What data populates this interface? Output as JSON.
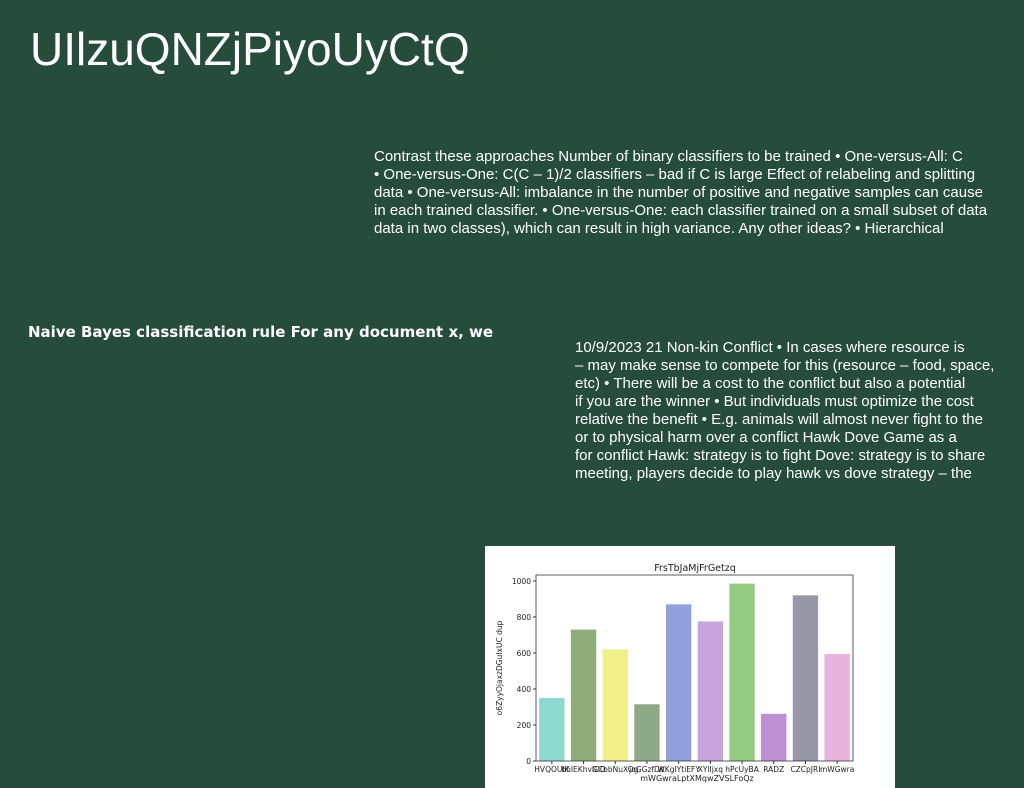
{
  "header": {
    "title": "UIlzuQNZjPiyoUyCtQ"
  },
  "blocks": [
    {
      "lines": [
        "Contrast these approaches Number of binary classifiers to be trained • One-versus-All: C",
        "• One-versus-One: C(C – 1)/2 classifiers – bad if C is large Effect of relabeling and splitting",
        "data • One-versus-All: imbalance in the number of positive and negative samples can cause",
        "in each trained classifier. • One-versus-One: each classifier trained on a small subset of data",
        "data in two classes), which can result in high variance. Any other ideas? • Hierarchical"
      ]
    },
    {
      "lines": [
        "Naive Bayes classification rule For any document x, we"
      ]
    },
    {
      "lines": [
        "10/9/2023 21 Non-kin Conflict • In cases where resource is",
        "– may make sense to compete for this (resource – food, space,",
        "etc) • There will be a cost to the conflict but also a potential",
        "if you are the winner • But individuals must optimize the cost",
        "relative the benefit • E.g. animals will almost never fight to the",
        "or to physical harm over a conflict Hawk Dove Game as a",
        "for conflict Hawk: strategy is to fight Dove: strategy is to share",
        "meeting, players decide to play hawk vs dove strategy – the"
      ]
    }
  ],
  "chart_data": {
    "type": "bar",
    "title": "FrsTbJaMjFrGetzq",
    "x_label": "mWGwraLptXMqwZVSLFoQz",
    "y_label": "o6ZyyOjaxzDGuIxUC dup",
    "categories": [
      "HVQOUlK",
      "bhIEKhvlOO",
      "GCbbNuXOg",
      "joGGzfDK",
      "WKgIYtiEFY",
      "XYlIjxq",
      "hPcUyBA",
      "RADZ",
      "CZCpJRI",
      "mWGwra"
    ],
    "series": [
      {
        "name": "values",
        "values": [
          350,
          730,
          620,
          315,
          870,
          775,
          985,
          262,
          920,
          595
        ],
        "colors": [
          "#8dd9d0",
          "#8fac7a",
          "#f1f08a",
          "#8ea987",
          "#919fdd",
          "#c9a3dc",
          "#93cb80",
          "#bf8fd5",
          "#9797a8",
          "#e8b4dd"
        ]
      }
    ],
    "ylim": [
      0,
      1033
    ],
    "yticks": [
      0,
      200,
      400,
      600,
      800,
      1000
    ]
  }
}
